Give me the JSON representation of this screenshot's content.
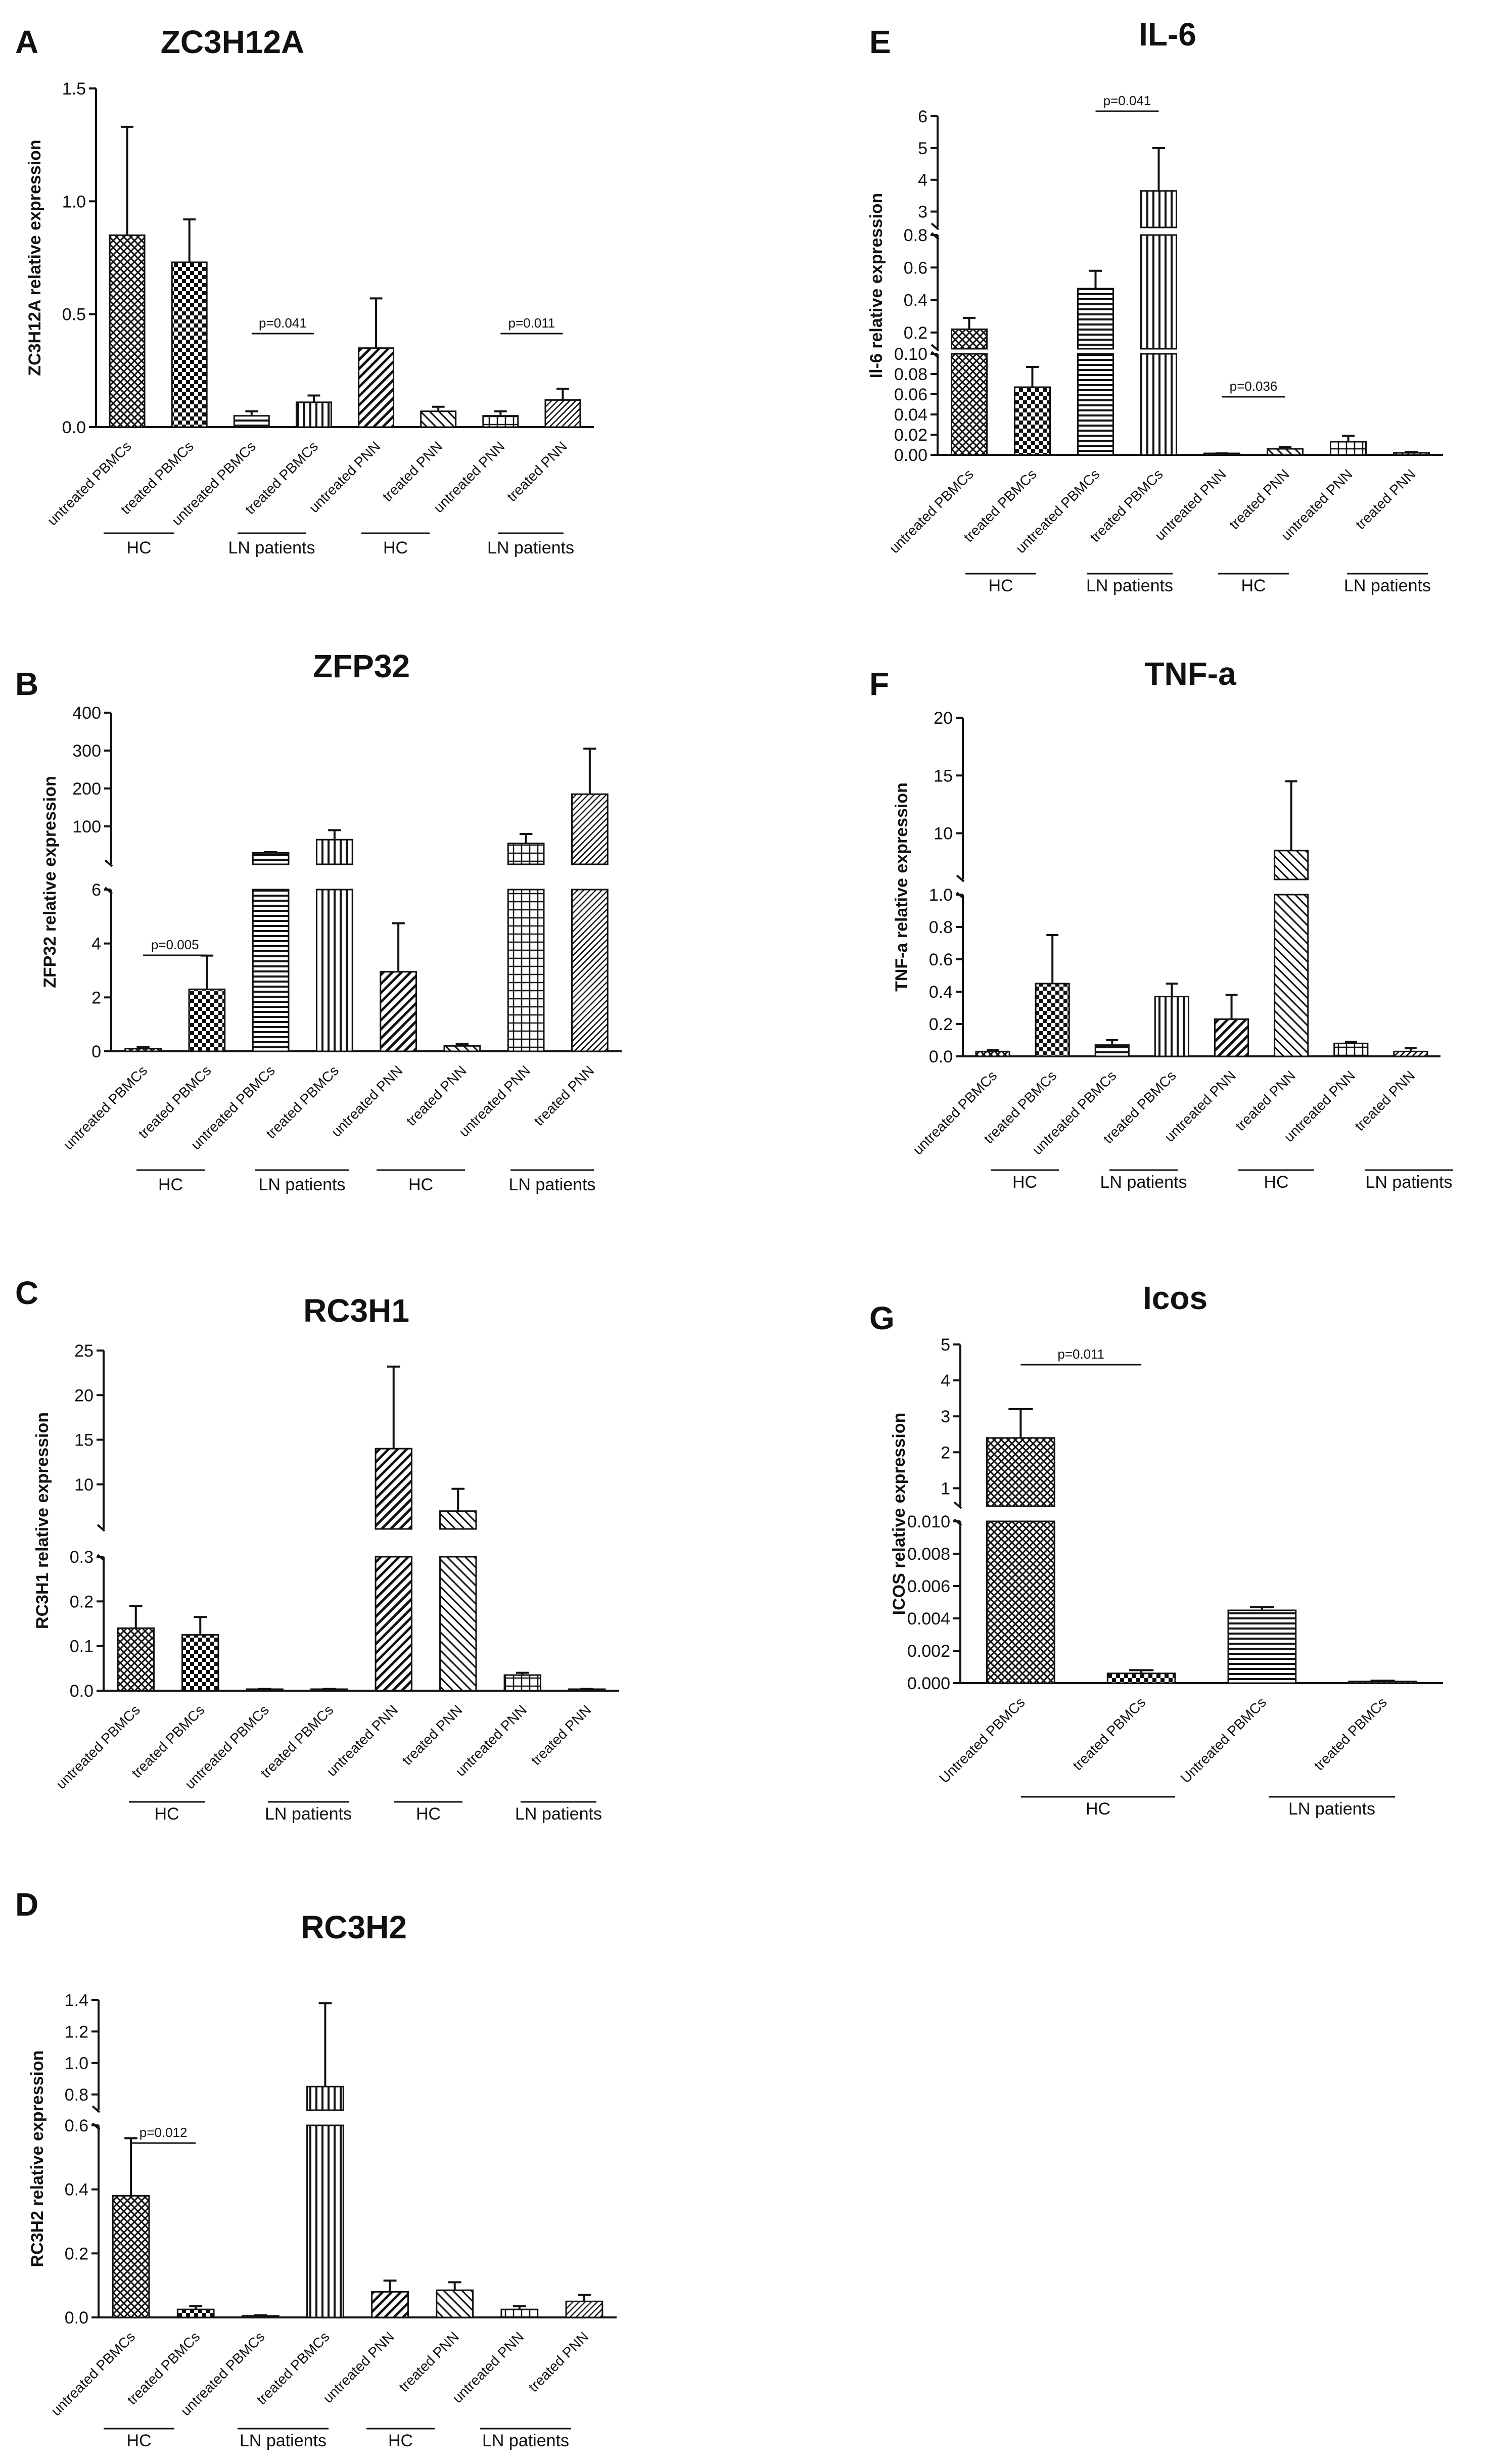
{
  "figure": {
    "panels": [
      {
        "letter": "A",
        "title": "ZC3H12A",
        "ylabel": "ZC3H12A relative expression",
        "ticks": [
          "0.0",
          "0.5",
          "1.0",
          "1.5"
        ],
        "categories": [
          "untreated PBMCs",
          "treated PBMCs",
          "untreated PBMCs",
          "treated PBMCs",
          "untreated PNN",
          "treated PNN",
          "untreated PNN",
          "treated PNN"
        ],
        "groups": [
          "HC",
          "LN patients",
          "HC",
          "LN patients"
        ],
        "pvalues": [
          "p=0.041",
          "p=0.011"
        ]
      },
      {
        "letter": "B",
        "title": "ZFP32",
        "ylabel": "ZFP32 relative expression",
        "ticks": [
          "0",
          "2",
          "4",
          "6",
          "100",
          "200",
          "300",
          "400"
        ],
        "categories": [
          "untreated PBMCs",
          "treated PBMCs",
          "untreated PBMCs",
          "treated PBMCs",
          "untreated PNN",
          "treated PNN",
          "untreated PNN",
          "treated PNN"
        ],
        "groups": [
          "HC",
          "LN patients",
          "HC",
          "LN patients"
        ],
        "pvalues": [
          "p=0.005"
        ]
      },
      {
        "letter": "C",
        "title": "RC3H1",
        "ylabel": "RC3H1 relative expression",
        "ticks": [
          "0.0",
          "0.1",
          "0.2",
          "0.3",
          "10",
          "15",
          "20",
          "25"
        ],
        "categories": [
          "untreated PBMCs",
          "treated PBMCs",
          "untreated PBMCs",
          "treated PBMCs",
          "untreated PNN",
          "treated PNN",
          "untreated PNN",
          "treated PNN"
        ],
        "groups": [
          "HC",
          "LN patients",
          "HC",
          "LN patients"
        ],
        "pvalues": []
      },
      {
        "letter": "D",
        "title": "RC3H2",
        "ylabel": "RC3H2 relative expression",
        "ticks": [
          "0.0",
          "0.2",
          "0.4",
          "0.6",
          "0.8",
          "1.0",
          "1.2",
          "1.4"
        ],
        "categories": [
          "untreated PBMCs",
          "treated PBMCs",
          "untreated PBMCs",
          "treated PBMCs",
          "untreated PNN",
          "treated PNN",
          "untreated PNN",
          "treated PNN"
        ],
        "groups": [
          "HC",
          "LN patients",
          "HC",
          "LN patients"
        ],
        "pvalues": [
          "p=0.012"
        ]
      },
      {
        "letter": "E",
        "title": "IL-6",
        "ylabel": "Il-6 relative expression",
        "ticks": [
          "0.00",
          "0.02",
          "0.04",
          "0.06",
          "0.08",
          "0.10",
          "0.2",
          "0.4",
          "0.6",
          "0.8",
          "3",
          "4",
          "5",
          "6"
        ],
        "categories": [
          "untreated PBMCs",
          "treated PBMCs",
          "untreated PBMCs",
          "treated PBMCs",
          "untreated PNN",
          "treated PNN",
          "untreated PNN",
          "treated PNN"
        ],
        "groups": [
          "HC",
          "LN patients",
          "HC",
          "LN patients"
        ],
        "pvalues": [
          "p=0.041",
          "p=0.036"
        ]
      },
      {
        "letter": "F",
        "title": "TNF-a",
        "ylabel": "TNF-a relative expression",
        "ticks": [
          "0.0",
          "0.2",
          "0.4",
          "0.6",
          "0.8",
          "1.0",
          "10",
          "15",
          "20"
        ],
        "categories": [
          "untreated PBMCs",
          "treated PBMCs",
          "untreated PBMCs",
          "treated PBMCs",
          "untreated PNN",
          "treated PNN",
          "untreated PNN",
          "treated PNN"
        ],
        "groups": [
          "HC",
          "LN patients",
          "HC",
          "LN patients"
        ],
        "pvalues": []
      },
      {
        "letter": "G",
        "title": "Icos",
        "ylabel": "ICOS relative expression",
        "ticks": [
          "0.000",
          "0.002",
          "0.004",
          "0.006",
          "0.008",
          "0.010",
          "1",
          "2",
          "3",
          "4",
          "5"
        ],
        "categories": [
          "Untreated PBMCs",
          "treated PBMCs",
          "Untreated PBMCs",
          "treated PBMCs"
        ],
        "groups": [
          "HC",
          "LN patients"
        ],
        "pvalues": [
          "p=0.011"
        ]
      }
    ]
  },
  "chart_data": [
    {
      "type": "bar",
      "title": "ZC3H12A",
      "ylabel": "ZC3H12A relative expression",
      "ylim": [
        0,
        1.5
      ],
      "categories": [
        "untreated PBMCs",
        "treated PBMCs",
        "untreated PBMCs",
        "treated PBMCs",
        "untreated PNN",
        "treated PNN",
        "untreated PNN",
        "treated PNN"
      ],
      "values": [
        0.85,
        0.73,
        0.05,
        0.11,
        0.35,
        0.07,
        0.05,
        0.12
      ],
      "errors": [
        0.48,
        0.19,
        0.02,
        0.03,
        0.22,
        0.02,
        0.02,
        0.05
      ],
      "groups": [
        "HC",
        "LN patients",
        "HC",
        "LN patients"
      ],
      "annotations": [
        {
          "text": "p=0.041",
          "between": [
            2,
            3
          ]
        },
        {
          "text": "p=0.011",
          "between": [
            6,
            7
          ]
        }
      ]
    },
    {
      "type": "bar",
      "title": "ZFP32",
      "ylabel": "ZFP32 relative expression",
      "y_axis_break": {
        "lower": [
          0,
          6
        ],
        "upper": [
          0,
          400
        ]
      },
      "categories": [
        "untreated PBMCs",
        "treated PBMCs",
        "untreated PBMCs",
        "treated PBMCs",
        "untreated PNN",
        "treated PNN",
        "untreated PNN",
        "treated PNN"
      ],
      "values": [
        0.1,
        2.3,
        30,
        65,
        2.95,
        0.2,
        55,
        185
      ],
      "errors": [
        0.05,
        1.25,
        2,
        25,
        1.8,
        0.08,
        25,
        120
      ],
      "groups": [
        "HC",
        "LN patients",
        "HC",
        "LN patients"
      ],
      "annotations": [
        {
          "text": "p=0.005",
          "between": [
            0,
            1
          ]
        }
      ]
    },
    {
      "type": "bar",
      "title": "RC3H1",
      "ylabel": "RC3H1 relative expression",
      "y_axis_break": {
        "lower": [
          0,
          0.3
        ],
        "upper": [
          5,
          25
        ]
      },
      "categories": [
        "untreated PBMCs",
        "treated PBMCs",
        "untreated PBMCs",
        "treated PBMCs",
        "untreated PNN",
        "treated PNN",
        "untreated PNN",
        "treated PNN"
      ],
      "values": [
        0.14,
        0.125,
        0.003,
        0.003,
        14,
        7,
        0.035,
        0.003
      ],
      "errors": [
        0.05,
        0.04,
        0.001,
        0.001,
        9.2,
        2.5,
        0.005,
        0.001
      ],
      "groups": [
        "HC",
        "LN patients",
        "HC",
        "LN patients"
      ],
      "annotations": []
    },
    {
      "type": "bar",
      "title": "RC3H2",
      "ylabel": "RC3H2 relative expression",
      "y_axis_break": {
        "lower": [
          0,
          0.6
        ],
        "upper": [
          0.7,
          1.4
        ]
      },
      "categories": [
        "untreated PBMCs",
        "treated PBMCs",
        "untreated PBMCs",
        "treated PBMCs",
        "untreated PNN",
        "treated PNN",
        "untreated PNN",
        "treated PNN"
      ],
      "values": [
        0.38,
        0.025,
        0.005,
        0.85,
        0.08,
        0.085,
        0.025,
        0.05
      ],
      "errors": [
        0.18,
        0.01,
        0.002,
        0.53,
        0.035,
        0.025,
        0.01,
        0.02
      ],
      "groups": [
        "HC",
        "LN patients",
        "HC",
        "LN patients"
      ],
      "annotations": [
        {
          "text": "p=0.012",
          "between": [
            0,
            1
          ]
        }
      ]
    },
    {
      "type": "bar",
      "title": "IL-6",
      "ylabel": "Il-6 relative expression",
      "y_axis_break": {
        "lower": [
          0,
          0.1
        ],
        "middle": [
          0.1,
          0.8
        ],
        "upper": [
          2.5,
          6
        ]
      },
      "categories": [
        "untreated PBMCs",
        "treated PBMCs",
        "untreated PBMCs",
        "treated PBMCs",
        "untreated PNN",
        "treated PNN",
        "untreated PNN",
        "treated PNN"
      ],
      "values": [
        0.22,
        0.067,
        0.47,
        3.65,
        0.001,
        0.006,
        0.013,
        0.002
      ],
      "errors": [
        0.07,
        0.02,
        0.11,
        1.35,
        0.0005,
        0.002,
        0.006,
        0.001
      ],
      "groups": [
        "HC",
        "LN patients",
        "HC",
        "LN patients"
      ],
      "annotations": [
        {
          "text": "p=0.041",
          "between": [
            2,
            3
          ]
        },
        {
          "text": "p=0.036",
          "between": [
            4,
            5
          ]
        }
      ]
    },
    {
      "type": "bar",
      "title": "TNF-a",
      "ylabel": "TNF-a relative expression",
      "y_axis_break": {
        "lower": [
          0,
          1.0
        ],
        "upper": [
          6,
          20
        ]
      },
      "categories": [
        "untreated PBMCs",
        "treated PBMCs",
        "untreated PBMCs",
        "treated PBMCs",
        "untreated PNN",
        "treated PNN",
        "untreated PNN",
        "treated PNN"
      ],
      "values": [
        0.03,
        0.45,
        0.07,
        0.37,
        0.23,
        8.5,
        0.08,
        0.03
      ],
      "errors": [
        0.01,
        0.3,
        0.03,
        0.08,
        0.15,
        6,
        0.01,
        0.02
      ],
      "groups": [
        "HC",
        "LN patients",
        "HC",
        "LN patients"
      ],
      "annotations": []
    },
    {
      "type": "bar",
      "title": "Icos",
      "ylabel": "ICOS relative expression",
      "y_axis_break": {
        "lower": [
          0,
          0.01
        ],
        "upper": [
          0.5,
          5
        ]
      },
      "categories": [
        "Untreated PBMCs",
        "treated PBMCs",
        "Untreated PBMCs",
        "treated PBMCs"
      ],
      "values": [
        2.4,
        0.0006,
        0.0045,
        0.0001
      ],
      "errors": [
        0.8,
        0.0002,
        0.0002,
        5e-05
      ],
      "groups": [
        "HC",
        "LN patients"
      ],
      "annotations": [
        {
          "text": "p=0.011",
          "between": [
            0,
            1
          ]
        }
      ]
    }
  ]
}
